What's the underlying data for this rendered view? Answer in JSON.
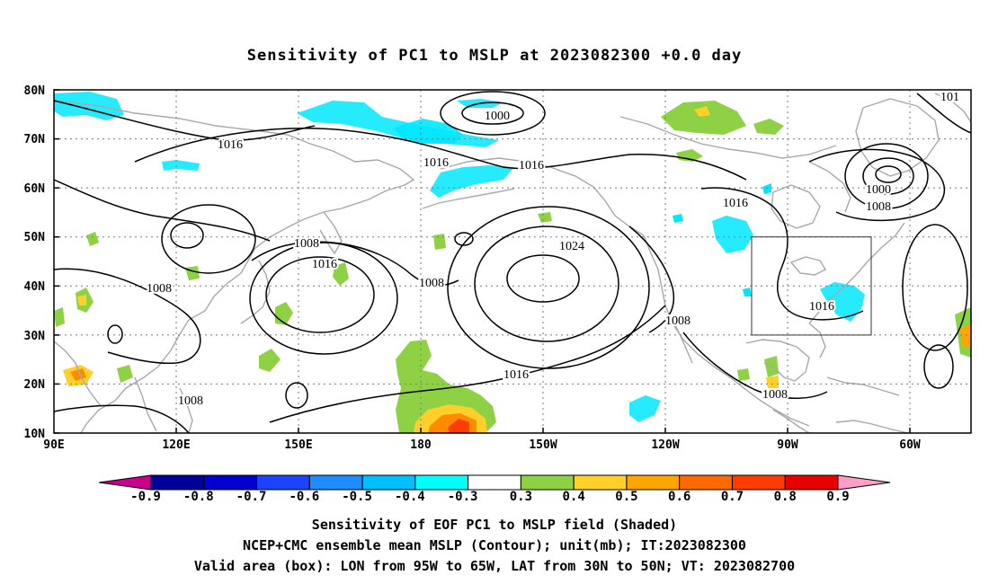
{
  "title": "Sensitivity of PC1 to MSLP at 2023082300 +0.0 day",
  "map": {
    "lat_labels": [
      "80N",
      "70N",
      "60N",
      "50N",
      "40N",
      "30N",
      "20N",
      "10N"
    ],
    "lon_labels": [
      "90E",
      "120E",
      "150E",
      "180",
      "150W",
      "120W",
      "90W",
      "60W"
    ],
    "contour_labels": [
      "1000",
      "1016",
      "1016",
      "1016",
      "1024",
      "1008",
      "1008",
      "1016",
      "1008",
      "1008",
      "1016",
      "1008",
      "1016",
      "1008",
      "1000",
      "1008",
      "1016",
      "101"
    ],
    "valid_box_label": "Valid area (box)"
  },
  "colorbar": {
    "labels": [
      "-0.9",
      "-0.8",
      "-0.7",
      "-0.6",
      "-0.5",
      "-0.4",
      "-0.3",
      "0.3",
      "0.4",
      "0.5",
      "0.6",
      "0.7",
      "0.8",
      "0.9"
    ],
    "colors": [
      "#c8008c",
      "#00009a",
      "#0000d0",
      "#1c44ff",
      "#1e8cff",
      "#00bfff",
      "#00ffff",
      "#ffffff",
      "#8fd145",
      "#ffd02a",
      "#ffa500",
      "#ff6a00",
      "#ff3c00",
      "#e80000",
      "#ff9ec7"
    ]
  },
  "captions": {
    "line1": "Sensitivity of EOF PC1 to MSLP field (Shaded)",
    "line2": "NCEP+CMC ensemble mean MSLP (Contour); unit(mb); IT:2023082300",
    "line3": "Valid area (box): LON from 95W to 65W, LAT from 30N to 50N; VT: 2023082700"
  },
  "colors": {
    "contour": "#000000",
    "coast": "#a8a8a8",
    "grid": "#7a7a7a",
    "cyan_shade": "#00e8ff",
    "green_shade": "#8fd145",
    "yellow_shade": "#ffd02a",
    "orange_shade": "#ff8c00",
    "red_shade": "#ff3c00"
  }
}
